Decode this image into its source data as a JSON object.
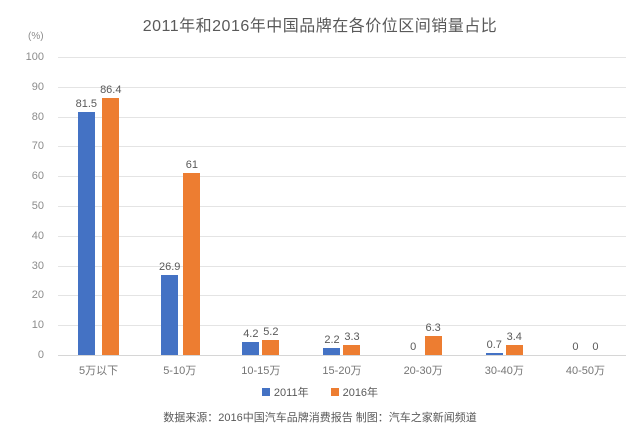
{
  "chart_data": {
    "type": "bar",
    "title": "2011年和2016年中国品牌在各价位区间销量占比",
    "unit_label": "(%)",
    "categories": [
      "5万以下",
      "5-10万",
      "10-15万",
      "15-20万",
      "20-30万",
      "30-40万",
      "40-50万"
    ],
    "series": [
      {
        "name": "2011年",
        "color": "#4472C4",
        "values": [
          81.5,
          26.9,
          4.2,
          2.2,
          0,
          0.7,
          0
        ]
      },
      {
        "name": "2016年",
        "color": "#ED7D31",
        "values": [
          86.4,
          61,
          5.2,
          3.3,
          6.3,
          3.4,
          0
        ]
      }
    ],
    "ylim": [
      0,
      100
    ],
    "y_ticks": [
      100,
      90,
      80,
      70,
      60,
      50,
      40,
      30,
      20,
      10,
      0
    ],
    "grid": true,
    "legend_position": "bottom",
    "data_labels": true
  },
  "footer": {
    "text": "数据来源：2016中国汽车品牌消费报告  制图：汽车之家新闻频道"
  },
  "colors": {
    "series_2011": "#4472C4",
    "series_2016": "#ED7D31",
    "gridline": "#e4e4e4",
    "axis_line": "#d6d6d6",
    "text_gray": "#595959",
    "tick_gray": "#8c8c8c"
  }
}
